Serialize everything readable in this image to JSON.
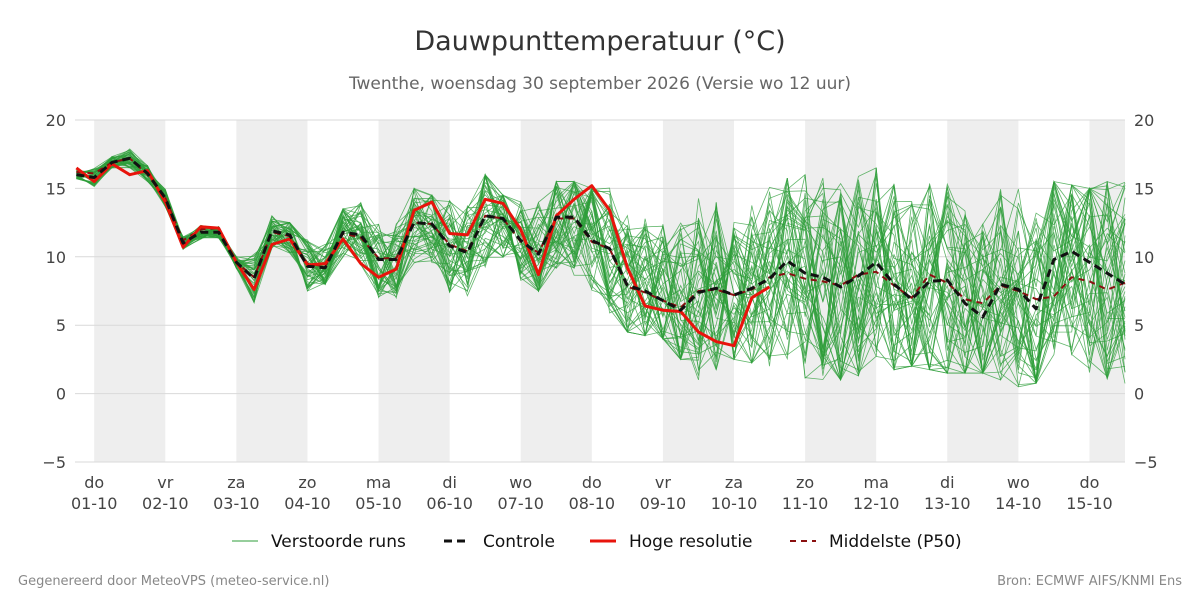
{
  "chart_data": {
    "type": "line",
    "title": "Dauwpunttemperatuur (°C)",
    "subtitle": "Twenthe, woensdag 30 september 2026 (Versie wo 12 uur)",
    "ylim": [
      -5,
      20
    ],
    "yticks": [
      -5,
      0,
      5,
      10,
      15,
      20
    ],
    "ytick_labels": [
      "−5",
      "0",
      "5",
      "10",
      "15",
      "20"
    ],
    "xlim": [
      -0.27,
      14.5
    ],
    "day_labels": [
      {
        "day": "do",
        "date": "01-10"
      },
      {
        "day": "vr",
        "date": "02-10"
      },
      {
        "day": "za",
        "date": "03-10"
      },
      {
        "day": "zo",
        "date": "04-10"
      },
      {
        "day": "ma",
        "date": "05-10"
      },
      {
        "day": "di",
        "date": "06-10"
      },
      {
        "day": "wo",
        "date": "07-10"
      },
      {
        "day": "do",
        "date": "08-10"
      },
      {
        "day": "vr",
        "date": "09-10"
      },
      {
        "day": "za",
        "date": "10-10"
      },
      {
        "day": "zo",
        "date": "11-10"
      },
      {
        "day": "ma",
        "date": "12-10"
      },
      {
        "day": "di",
        "date": "13-10"
      },
      {
        "day": "wo",
        "date": "14-10"
      },
      {
        "day": "do",
        "date": "15-10"
      }
    ],
    "shaded_day_bands": [
      [
        0,
        1
      ],
      [
        2,
        3
      ],
      [
        4,
        5
      ],
      [
        6,
        7
      ],
      [
        8,
        9
      ],
      [
        10,
        11
      ],
      [
        12,
        13
      ],
      [
        14,
        14.5
      ]
    ],
    "grid": true,
    "legend_position": "bottom",
    "colors": {
      "ensemble": "#2e9e3a",
      "control": "#111111",
      "high_res": "#e8140c",
      "median": "#8a1010",
      "band": "#eeeeee",
      "grid": "#d9d9d9"
    },
    "ensemble_member_count": 50,
    "ensemble_spread": {
      "x": [
        -0.25,
        0.0,
        0.25,
        0.5,
        0.75,
        1.0,
        1.25,
        1.5,
        1.75,
        2.0,
        2.25,
        2.5,
        2.75,
        3.0,
        3.25,
        3.5,
        3.75,
        4.0,
        4.25,
        4.5,
        4.75,
        5.0,
        5.25,
        5.5,
        5.75,
        6.0,
        6.25,
        6.5,
        6.75,
        7.0,
        7.25,
        7.5,
        8.0,
        8.5,
        9.0,
        9.5,
        10.0,
        10.5,
        11.0,
        11.5,
        12.0,
        12.5,
        13.0,
        13.5,
        14.0,
        14.5
      ],
      "low": [
        14.5,
        12.5,
        14.5,
        14.5,
        14.0,
        11.5,
        10.0,
        11.0,
        11.0,
        9.0,
        6.0,
        8.0,
        7.5,
        7.5,
        8.0,
        7.0,
        6.0,
        6.5,
        6.5,
        5.5,
        6.5,
        5.5,
        6.5,
        6.5,
        7.5,
        7.0,
        7.5,
        7.0,
        6.0,
        6.0,
        5.5,
        4.5,
        4.0,
        1.0,
        2.5,
        2.0,
        0.5,
        1.0,
        1.5,
        2.0,
        1.5,
        1.5,
        0.5,
        1.0,
        -1.5,
        0.5
      ],
      "high": [
        17.0,
        17.5,
        17.5,
        19.0,
        17.5,
        15.0,
        12.5,
        13.5,
        13.0,
        11.0,
        14.0,
        13.0,
        12.5,
        14.5,
        14.0,
        13.5,
        14.0,
        15.5,
        15.0,
        15.0,
        14.5,
        15.0,
        16.0,
        16.0,
        14.5,
        14.0,
        16.5,
        15.5,
        15.5,
        15.0,
        15.5,
        15.0,
        15.5,
        15.0,
        14.0,
        15.5,
        16.0,
        16.5,
        16.5,
        16.5,
        16.5,
        15.5,
        15.5,
        15.5,
        15.0,
        16.0
      ]
    },
    "series": [
      {
        "name": "Controle",
        "x": [
          -0.25,
          0.0,
          0.25,
          0.5,
          0.75,
          1.0,
          1.25,
          1.5,
          1.75,
          2.0,
          2.25,
          2.5,
          2.75,
          3.0,
          3.25,
          3.5,
          3.75,
          4.0,
          4.25,
          4.5,
          4.75,
          5.0,
          5.25,
          5.5,
          5.75,
          6.0,
          6.25,
          6.5,
          6.75,
          7.0,
          7.25,
          7.5,
          7.75,
          8.0,
          8.25,
          8.5,
          8.75,
          9.0,
          9.25,
          9.5,
          9.75,
          10.0,
          10.25,
          10.5,
          10.75,
          11.0,
          11.25,
          11.5,
          11.75,
          12.0,
          12.25,
          12.5,
          12.75,
          13.0,
          13.25,
          13.5,
          13.75,
          14.0,
          14.25,
          14.5
        ],
        "values": [
          16.0,
          15.8,
          16.9,
          17.2,
          16.1,
          14.3,
          11.0,
          11.8,
          11.8,
          9.6,
          8.4,
          11.9,
          11.6,
          9.3,
          9.2,
          11.8,
          11.6,
          9.8,
          9.8,
          12.5,
          12.4,
          10.8,
          10.3,
          13.0,
          12.8,
          11.2,
          10.2,
          12.9,
          12.9,
          11.2,
          10.6,
          7.9,
          7.5,
          6.8,
          6.1,
          7.4,
          7.7,
          7.2,
          7.7,
          8.4,
          9.7,
          8.8,
          8.5,
          7.8,
          8.6,
          9.6,
          8.0,
          6.9,
          8.2,
          8.3,
          6.6,
          5.6,
          8.0,
          7.6,
          6.2,
          9.8,
          10.4,
          9.6,
          8.8,
          8.0
        ]
      },
      {
        "name": "Hoge resolutie",
        "x": [
          -0.25,
          0.0,
          0.25,
          0.5,
          0.75,
          1.0,
          1.25,
          1.5,
          1.75,
          2.0,
          2.25,
          2.5,
          2.75,
          3.0,
          3.25,
          3.5,
          3.75,
          4.0,
          4.25,
          4.5,
          4.75,
          5.0,
          5.25,
          5.5,
          5.75,
          6.0,
          6.25,
          6.5,
          6.75,
          7.0,
          7.25,
          7.5,
          7.75,
          8.0,
          8.25,
          8.5,
          8.75,
          9.0,
          9.25,
          9.5
        ],
        "values": [
          16.5,
          15.5,
          16.8,
          16.0,
          16.3,
          14.0,
          10.7,
          12.2,
          12.1,
          9.6,
          7.6,
          10.9,
          11.3,
          9.4,
          9.5,
          11.3,
          9.5,
          8.5,
          9.1,
          13.4,
          14.0,
          11.7,
          11.6,
          14.2,
          13.9,
          12.0,
          8.7,
          13.0,
          14.2,
          15.2,
          13.4,
          9.2,
          6.4,
          6.1,
          6.0,
          4.5,
          3.8,
          3.5,
          7.0,
          7.8
        ]
      },
      {
        "name": "Middelste (P50)",
        "x": [
          -0.25,
          0.0,
          0.25,
          0.5,
          0.75,
          1.0,
          1.25,
          1.5,
          1.75,
          2.0,
          2.25,
          2.5,
          2.75,
          3.0,
          3.25,
          3.5,
          3.75,
          4.0,
          4.25,
          4.5,
          4.75,
          5.0,
          5.25,
          5.5,
          5.75,
          6.0,
          6.25,
          6.5,
          6.75,
          7.0,
          7.25,
          7.5,
          7.75,
          8.0,
          8.25,
          8.5,
          8.75,
          9.0,
          9.25,
          9.5,
          9.75,
          10.0,
          10.25,
          10.5,
          10.75,
          11.0,
          11.25,
          11.5,
          11.75,
          12.0,
          12.25,
          12.5,
          12.75,
          13.0,
          13.25,
          13.5,
          13.75,
          14.0,
          14.25,
          14.5
        ],
        "values": [
          16.2,
          16.1,
          16.9,
          17.2,
          16.0,
          14.3,
          11.2,
          12.0,
          12.1,
          9.6,
          8.5,
          11.8,
          11.5,
          9.5,
          9.3,
          11.7,
          11.4,
          9.9,
          9.9,
          12.5,
          12.4,
          10.9,
          10.4,
          13.0,
          12.8,
          11.1,
          10.3,
          12.8,
          12.8,
          11.1,
          10.6,
          7.8,
          7.4,
          6.8,
          6.3,
          7.5,
          7.6,
          7.2,
          7.6,
          8.5,
          8.8,
          8.4,
          8.2,
          7.9,
          8.7,
          8.9,
          7.9,
          7.0,
          8.7,
          8.1,
          6.9,
          6.6,
          7.9,
          7.5,
          6.9,
          7.1,
          8.5,
          8.2,
          7.6,
          8.1
        ]
      }
    ],
    "legend": {
      "ensemble": "Verstoorde runs",
      "control": "Controle",
      "high_res": "Hoge resolutie",
      "median": "Middelste (P50)"
    }
  },
  "footer": {
    "left": "Gegenereerd door MeteoVPS (meteo-service.nl)",
    "right": "Bron: ECMWF AIFS/KNMI Ens"
  }
}
